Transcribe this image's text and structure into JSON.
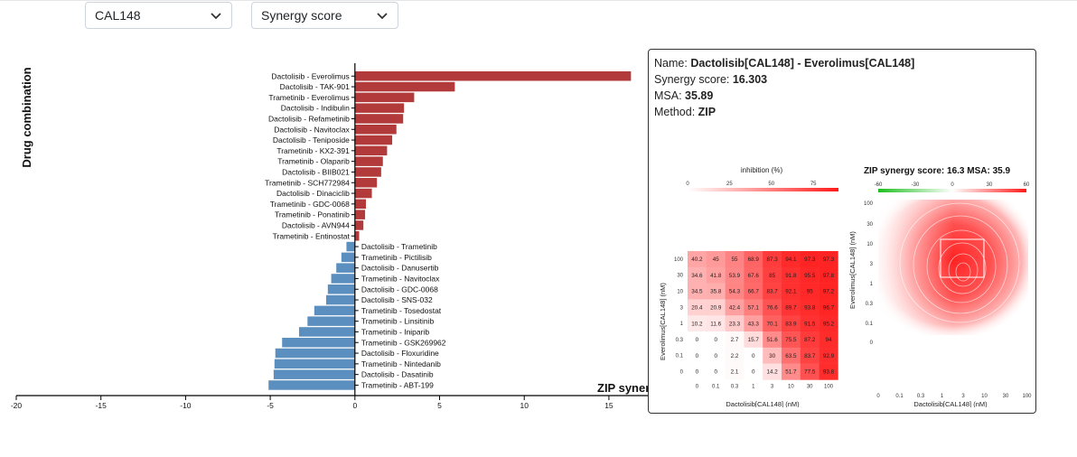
{
  "controls": {
    "cell_line": "CAL148",
    "metric": "Synergy score"
  },
  "chart_data": {
    "type": "bar",
    "orientation": "horizontal",
    "ylabel": "Drug combination",
    "xlabel": "ZIP synergy score",
    "xlabel_visible": "ZIP syner",
    "xlim": [
      -20,
      17
    ],
    "xticks": [
      -20,
      -15,
      -10,
      -5,
      0,
      5,
      10,
      15
    ],
    "bars": [
      {
        "label": "Dactolisib - Everolimus",
        "value": 16.303
      },
      {
        "label": "Dactolisib - TAK-901",
        "value": 5.9
      },
      {
        "label": "Trametinib - Everolimus",
        "value": 3.5
      },
      {
        "label": "Dactolisib - Indibulin",
        "value": 2.9
      },
      {
        "label": "Dactolisib - Refametinib",
        "value": 2.85
      },
      {
        "label": "Dactolisib - Navitoclax",
        "value": 2.45
      },
      {
        "label": "Dactolisib - Teniposide",
        "value": 2.2
      },
      {
        "label": "Trametinib - KX2-391",
        "value": 1.9
      },
      {
        "label": "Trametinib - Olaparib",
        "value": 1.65
      },
      {
        "label": "Dactolisib - BIIB021",
        "value": 1.55
      },
      {
        "label": "Trametinib - SCH772984",
        "value": 1.3
      },
      {
        "label": "Dactolisib - Dinaciclib",
        "value": 1.0
      },
      {
        "label": "Trametinib - GDC-0068",
        "value": 0.65
      },
      {
        "label": "Trametinib - Ponatinib",
        "value": 0.6
      },
      {
        "label": "Dactolisib - AVN944",
        "value": 0.5
      },
      {
        "label": "Trametinib - Entinostat",
        "value": 0.25
      },
      {
        "label": "Dactolisib - Trametinib",
        "value": -0.5
      },
      {
        "label": "Trametinib - Pictilisib",
        "value": -0.8
      },
      {
        "label": "Dactolisib - Danusertib",
        "value": -1.1
      },
      {
        "label": "Trametinib - Navitoclax",
        "value": -1.4
      },
      {
        "label": "Dactolisib - GDC-0068",
        "value": -1.6
      },
      {
        "label": "Dactolisib - SNS-032",
        "value": -1.7
      },
      {
        "label": "Trametinib - Tosedostat",
        "value": -2.4
      },
      {
        "label": "Trametinib - Linsitinib",
        "value": -2.8
      },
      {
        "label": "Trametinib - Iniparib",
        "value": -3.3
      },
      {
        "label": "Trametinib - GSK269962",
        "value": -4.3
      },
      {
        "label": "Dactolisib - Floxuridine",
        "value": -4.7
      },
      {
        "label": "Trametinib - Nintedanib",
        "value": -4.75
      },
      {
        "label": "Dactolisib - Dasatinib",
        "value": -4.8
      },
      {
        "label": "Trametinib - ABT-199",
        "value": -5.1
      }
    ],
    "colors": {
      "positive": "#b23a3a",
      "negative": "#5b8fbf"
    }
  },
  "tooltip": {
    "name_label": "Name:",
    "name_value": "Dactolisib[CAL148] - Everolimus[CAL148]",
    "synergy_label": "Synergy score:",
    "synergy_value": "16.303",
    "msa_label": "MSA:",
    "msa_value": "35.89",
    "method_label": "Method:",
    "method_value": "ZIP"
  },
  "heatmap": {
    "title": "inhibition (%)",
    "legend_ticks": [
      "0",
      "25",
      "50",
      "75"
    ],
    "xlabel": "Dactolisib[CAL148] (nM)",
    "ylabel": "Everolimus[CAL148] (nM)",
    "x_ticks": [
      "0",
      "0.1",
      "0.3",
      "1",
      "3",
      "10",
      "30",
      "100"
    ],
    "y_ticks": [
      "100",
      "30",
      "10",
      "3",
      "1",
      "0.3",
      "0.1",
      "0"
    ],
    "matrix": [
      [
        "40.2",
        "45",
        "55",
        "68.9",
        "87.3",
        "94.1",
        "97.3",
        "97.3"
      ],
      [
        "34.6",
        "41.8",
        "53.9",
        "67.6",
        "85",
        "91.8",
        "95.5",
        "97.8"
      ],
      [
        "34.5",
        "35.8",
        "54.3",
        "66.7",
        "83.7",
        "92.1",
        "95",
        "97.2"
      ],
      [
        "20.4",
        "20.9",
        "42.4",
        "57.1",
        "76.6",
        "89.7",
        "93.8",
        "96.7"
      ],
      [
        "10.2",
        "11.6",
        "23.3",
        "43.3",
        "70.1",
        "83.9",
        "91.5",
        "95.2"
      ],
      [
        "0",
        "0",
        "2.7",
        "15.7",
        "51.6",
        "75.5",
        "87.2",
        "94"
      ],
      [
        "0",
        "0",
        "2.2",
        "0",
        "30",
        "63.5",
        "83.7",
        "92.9"
      ],
      [
        "0",
        "0",
        "2.1",
        "0",
        "14.2",
        "51.7",
        "77.5",
        "93.8"
      ]
    ]
  },
  "surface": {
    "title": "ZIP synergy score: 16.3 MSA: 35.9",
    "legend_ticks": [
      "-60",
      "-30",
      "0",
      "30",
      "60"
    ],
    "xlabel": "Dactolisib[CAL148] (nM)",
    "ylabel": "Everolimus[CAL148] (nM)",
    "x_ticks": [
      "0",
      "0.1",
      "0.3",
      "1",
      "3",
      "10",
      "30",
      "100"
    ],
    "y_ticks": [
      "100",
      "30",
      "10",
      "3",
      "1",
      "0.3",
      "0.1",
      "0"
    ],
    "peak_color": "#ff2020"
  }
}
